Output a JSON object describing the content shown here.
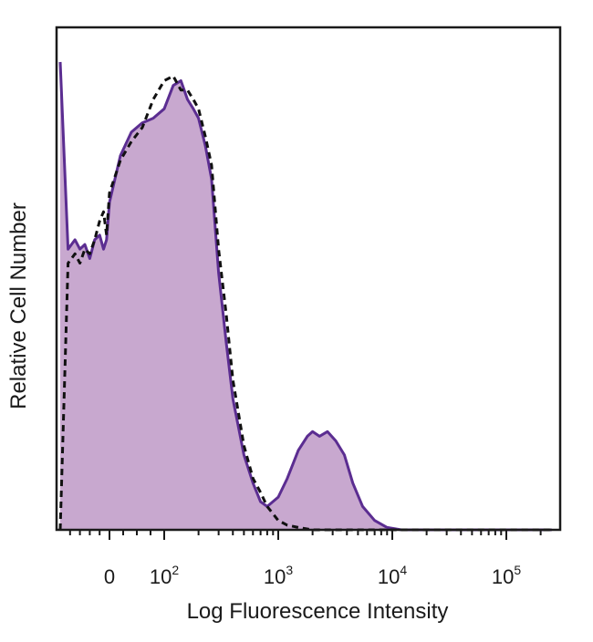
{
  "chart_data": {
    "type": "area",
    "xlabel": "Log Fluorescence Intensity",
    "ylabel": "Relative Cell Number",
    "x_scale": "biexponential",
    "x_ticks": [
      {
        "value": 0,
        "base": "0",
        "exp": ""
      },
      {
        "value": 100,
        "base": "10",
        "exp": "2"
      },
      {
        "value": 1000,
        "base": "10",
        "exp": "3"
      },
      {
        "value": 10000,
        "base": "10",
        "exp": "4"
      },
      {
        "value": 100000,
        "base": "10",
        "exp": "5"
      }
    ],
    "xlim": [
      -500,
      250000
    ],
    "ylim": [
      0,
      100
    ],
    "grid": false,
    "legend": "none",
    "series": [
      {
        "style": "filled",
        "fill_color": "#c8a8cf",
        "line_color": "#5b2d91",
        "x": [
          -500,
          -420,
          -350,
          -300,
          -250,
          -200,
          -150,
          -100,
          -60,
          -30,
          0,
          20,
          40,
          60,
          80,
          100,
          120,
          140,
          160,
          180,
          200,
          230,
          260,
          300,
          350,
          400,
          500,
          600,
          700,
          800,
          1000,
          1200,
          1500,
          1800,
          2000,
          2300,
          2700,
          3200,
          3800,
          4500,
          5500,
          7000,
          9000,
          12000,
          20000,
          50000,
          100000,
          250000
        ],
        "y": [
          100,
          60,
          62,
          60,
          61,
          58,
          62,
          63,
          60,
          62,
          70,
          80,
          85,
          87,
          88,
          90,
          95,
          96,
          92,
          90,
          88,
          82,
          75,
          55,
          40,
          28,
          16,
          10,
          6,
          5,
          7,
          11,
          17,
          20,
          21,
          20,
          21,
          19,
          16,
          10,
          5,
          2,
          0.5,
          0,
          0,
          0,
          0,
          0
        ]
      },
      {
        "style": "dashed",
        "line_color": "#111111",
        "x": [
          -500,
          -420,
          -350,
          -300,
          -250,
          -200,
          -150,
          -100,
          -60,
          -30,
          0,
          20,
          40,
          60,
          80,
          100,
          120,
          140,
          160,
          180,
          200,
          230,
          260,
          300,
          350,
          400,
          500,
          600,
          700,
          800,
          1000,
          1200,
          1500,
          2000,
          3000,
          5000,
          10000,
          250000
        ],
        "y": [
          0,
          57,
          59,
          57,
          60,
          59,
          62,
          66,
          68,
          63,
          72,
          79,
          83,
          86,
          92,
          96,
          97,
          94,
          94,
          92,
          90,
          84,
          78,
          60,
          46,
          32,
          18,
          11,
          8,
          5,
          2,
          1,
          0.5,
          0,
          0,
          0,
          0,
          0
        ]
      }
    ]
  }
}
